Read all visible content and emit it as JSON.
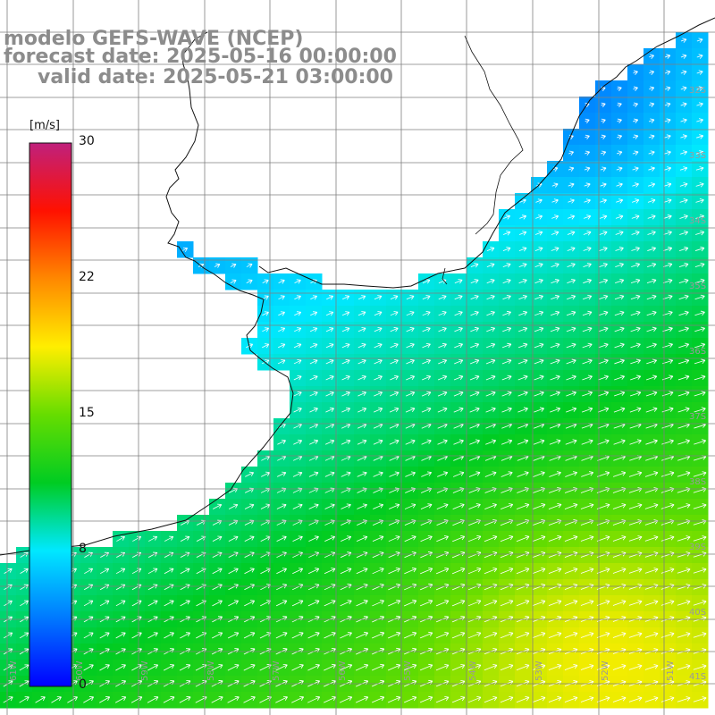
{
  "title": {
    "line1": "modelo GEFS-WAVE (NCEP)",
    "line2": "forecast date: 2025-05-16 00:00:00",
    "line3": "valid date: 2025-05-21 03:00:00"
  },
  "colorbar": {
    "unit": "[m/s]",
    "ticks": [
      "30",
      "22",
      "15",
      "8",
      "0"
    ],
    "range": [
      0,
      30
    ],
    "colors": [
      "#0000ff",
      "#0078ff",
      "#00e8ff",
      "#00cc22",
      "#66dd00",
      "#ffee00",
      "#ff8800",
      "#ff1100",
      "#c0207c"
    ]
  },
  "map": {
    "lat_labels": [
      "32S",
      "33S",
      "34S",
      "35S",
      "36S",
      "37S",
      "38S",
      "39S",
      "40S",
      "41S"
    ],
    "lon_labels": [
      "61W",
      "60W",
      "59W",
      "58W",
      "57W",
      "56W",
      "55W",
      "54W",
      "53W",
      "52W",
      "51W"
    ],
    "land_color": "#ffffff",
    "grid_color": "#7f7f7f",
    "arrow_color": "#ffffff"
  }
}
